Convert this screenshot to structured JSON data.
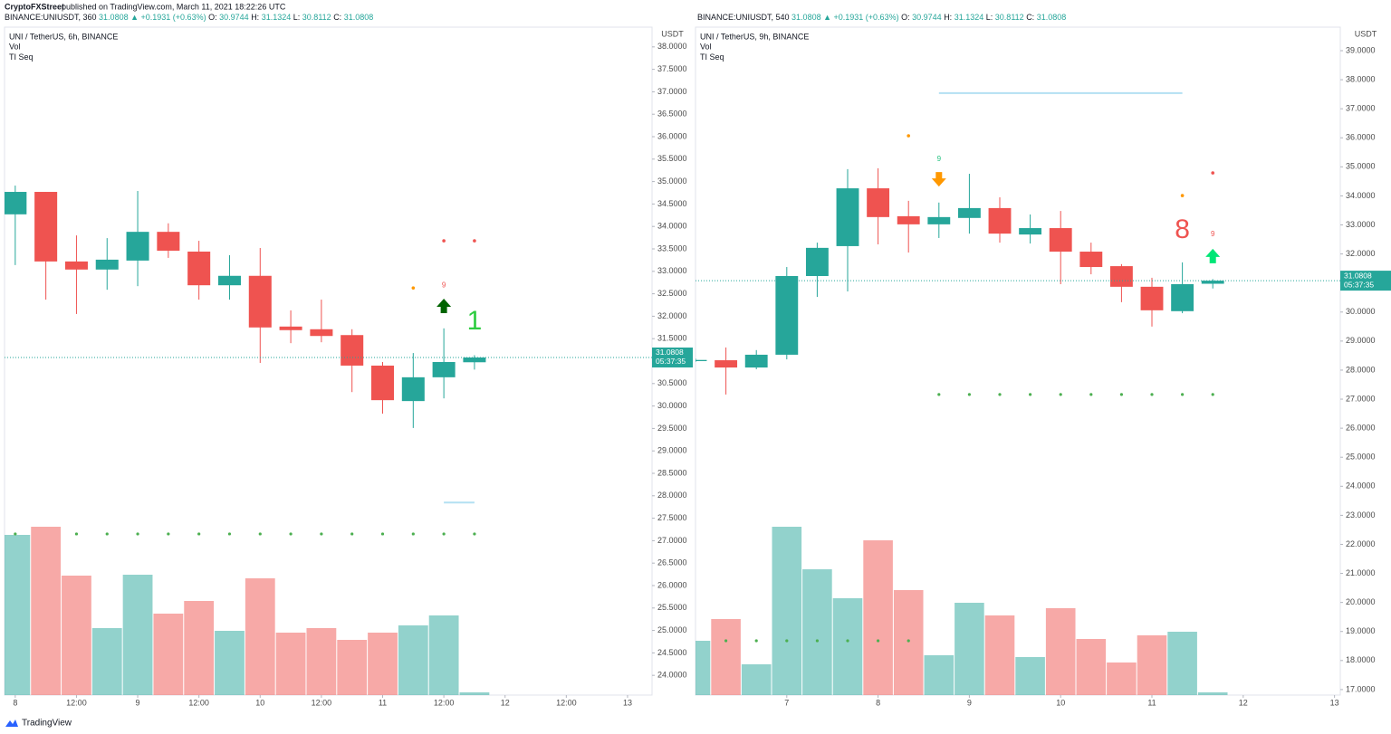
{
  "header": {
    "author": "CryptoFXStreet",
    "published": "published on TradingView.com, March 11, 2021 18:22:26 UTC"
  },
  "footer": "TradingView",
  "chart_data": [
    {
      "type": "candlestick",
      "symbol": "BINANCE:UNIUSDT, 360",
      "change": "▲ +0.1931 (+0.63%)",
      "ohlc_keys": [
        "O:",
        "H:",
        "L:",
        "C:"
      ],
      "title": "UNI / TetherUS, 6h, BINANCE",
      "legend": [
        "Vol",
        "TI Seq"
      ],
      "currency": "USDT",
      "countdown": "05:37:35",
      "colors": {
        "up": "#26a69a",
        "down": "#ef5350"
      },
      "open": [
        34.27,
        34.77,
        33.22,
        33.04,
        33.24,
        33.88,
        33.44,
        32.69,
        32.9,
        31.77,
        31.71,
        31.58,
        30.9,
        30.11,
        30.64,
        30.9744
      ],
      "high": [
        34.91,
        34.77,
        33.8,
        33.74,
        34.79,
        34.07,
        33.68,
        33.36,
        33.52,
        32.13,
        32.37,
        31.71,
        30.98,
        31.18,
        31.73,
        31.1324
      ],
      "low": [
        33.14,
        32.37,
        32.05,
        32.59,
        32.67,
        33.3,
        32.37,
        32.37,
        30.96,
        31.4,
        31.42,
        30.31,
        29.83,
        29.51,
        30.17,
        30.8112
      ],
      "close": [
        34.77,
        33.22,
        33.04,
        33.26,
        33.88,
        33.46,
        32.69,
        32.9,
        31.75,
        31.69,
        31.56,
        30.9,
        30.13,
        30.64,
        30.98,
        31.0808
      ],
      "volume": [
        177,
        186,
        132,
        74,
        133,
        90,
        104,
        71,
        129,
        69,
        74,
        61,
        69,
        77,
        88,
        3
      ],
      "vlim": [
        0,
        738
      ],
      "xlim": [
        -0.35,
        20.8
      ],
      "xticks": [
        {
          "value": 0,
          "label": "8"
        },
        {
          "value": 2,
          "label": "12:00"
        },
        {
          "value": 4,
          "label": "9"
        },
        {
          "value": 6,
          "label": "12:00"
        },
        {
          "value": 8,
          "label": "10"
        },
        {
          "value": 10,
          "label": "12:00"
        },
        {
          "value": 12,
          "label": "11"
        },
        {
          "value": 14,
          "label": "12:00"
        },
        {
          "value": 16,
          "label": "12"
        },
        {
          "value": 18,
          "label": "12:00"
        },
        {
          "value": 20,
          "label": "13"
        }
      ],
      "ylim": [
        23.56,
        38.44
      ],
      "yticks": [
        {
          "value": 24,
          "label": "24.0000"
        },
        {
          "value": 24.5,
          "label": "24.5000"
        },
        {
          "value": 25,
          "label": "25.0000"
        },
        {
          "value": 25.5,
          "label": "25.5000"
        },
        {
          "value": 26,
          "label": "26.0000"
        },
        {
          "value": 26.5,
          "label": "26.5000"
        },
        {
          "value": 27,
          "label": "27.0000"
        },
        {
          "value": 27.5,
          "label": "27.5000"
        },
        {
          "value": 28,
          "label": "28.0000"
        },
        {
          "value": 28.5,
          "label": "28.5000"
        },
        {
          "value": 29,
          "label": "29.0000"
        },
        {
          "value": 29.5,
          "label": "29.5000"
        },
        {
          "value": 30,
          "label": "30.0000"
        },
        {
          "value": 30.5,
          "label": "30.5000"
        },
        {
          "value": 31,
          "label": "31.0000"
        },
        {
          "value": 31.5,
          "label": "31.5000"
        },
        {
          "value": 32,
          "label": "32.0000"
        },
        {
          "value": 32.5,
          "label": "32.5000"
        },
        {
          "value": 33,
          "label": "33.0000"
        },
        {
          "value": 33.5,
          "label": "33.5000"
        },
        {
          "value": 34,
          "label": "34.0000"
        },
        {
          "value": 34.5,
          "label": "34.5000"
        },
        {
          "value": 35,
          "label": "35.0000"
        },
        {
          "value": 35.5,
          "label": "35.5000"
        },
        {
          "value": 36,
          "label": "36.0000"
        },
        {
          "value": 36.5,
          "label": "36.5000"
        },
        {
          "value": 37,
          "label": "37.0000"
        },
        {
          "value": 37.5,
          "label": "37.5000"
        },
        {
          "value": 38,
          "label": "38.0000"
        }
      ],
      "markers": [
        {
          "shape": "dot",
          "color": "#ff9800",
          "index": 13,
          "price": 32.63
        },
        {
          "shape": "text",
          "text": "9",
          "color": "#ef5350",
          "index": 14,
          "price": 32.69
        },
        {
          "shape": "arrow-up",
          "color": "#006400",
          "index": 14,
          "price": 32.23
        },
        {
          "shape": "big",
          "text": "1",
          "color": "#2ecc40",
          "index": 15,
          "price": 31.87
        },
        {
          "shape": "dot",
          "color": "#ef5350",
          "index": 14,
          "price": 33.68
        },
        {
          "shape": "dot",
          "color": "#ef5350",
          "index": 15,
          "price": 33.68
        }
      ],
      "levels": [
        {
          "price": 27.85,
          "from": 14,
          "to": 15,
          "color": "#b3e0f2"
        }
      ],
      "dots": [
        {
          "price": 27.15,
          "color": "#4caf50",
          "indices": [
            0,
            2,
            3,
            4,
            5,
            6,
            7,
            8,
            9,
            10,
            11,
            12,
            13,
            14,
            15
          ]
        }
      ]
    },
    {
      "type": "candlestick",
      "symbol": "BINANCE:UNIUSDT, 540",
      "change": "▲ +0.1931 (+0.63%)",
      "ohlc_keys": [
        "O:",
        "H:",
        "L:",
        "C:"
      ],
      "title": "UNI / TetherUS, 9h, BINANCE",
      "legend": [
        "Vol",
        "TI Seq"
      ],
      "currency": "USDT",
      "countdown": "05:37:35",
      "colors": {
        "up": "#26a69a",
        "down": "#ef5350"
      },
      "open": [
        28.31,
        28.34,
        28.09,
        28.53,
        31.24,
        32.27,
        34.26,
        33.3,
        33.02,
        33.24,
        33.58,
        32.67,
        32.89,
        32.08,
        31.58,
        30.87,
        30.03,
        30.9744
      ],
      "high": [
        28.4,
        28.78,
        28.69,
        31.55,
        32.39,
        34.92,
        34.95,
        33.83,
        33.77,
        34.76,
        33.95,
        33.36,
        33.48,
        32.39,
        31.65,
        31.18,
        31.71,
        31.1324
      ],
      "low": [
        28.28,
        27.16,
        28.03,
        28.37,
        30.52,
        30.71,
        32.33,
        32.05,
        32.55,
        32.7,
        32.39,
        32.36,
        30.96,
        31.3,
        30.34,
        29.5,
        29.96,
        30.8112
      ],
      "close": [
        28.35,
        28.09,
        28.53,
        31.24,
        32.21,
        34.26,
        33.27,
        33.02,
        33.27,
        33.58,
        32.7,
        32.89,
        32.08,
        31.55,
        30.87,
        30.06,
        30.96,
        31.0808
      ],
      "volume": [
        60,
        84,
        34,
        186,
        139,
        107,
        171,
        116,
        44,
        102,
        88,
        42,
        96,
        62,
        36,
        66,
        70,
        3
      ],
      "vlim": [
        0,
        738
      ],
      "xlim": [
        0,
        21.19
      ],
      "xticks": [
        {
          "value": 3,
          "label": "7"
        },
        {
          "value": 6,
          "label": "8"
        },
        {
          "value": 9,
          "label": "9"
        },
        {
          "value": 12,
          "label": "10"
        },
        {
          "value": 15,
          "label": "11"
        },
        {
          "value": 18,
          "label": "12"
        },
        {
          "value": 21,
          "label": "13"
        }
      ],
      "ylim": [
        16.81,
        39.81
      ],
      "yticks": [
        {
          "value": 17,
          "label": "17.0000"
        },
        {
          "value": 18,
          "label": "18.0000"
        },
        {
          "value": 19,
          "label": "19.0000"
        },
        {
          "value": 20,
          "label": "20.0000"
        },
        {
          "value": 21,
          "label": "21.0000"
        },
        {
          "value": 22,
          "label": "22.0000"
        },
        {
          "value": 23,
          "label": "23.0000"
        },
        {
          "value": 24,
          "label": "24.0000"
        },
        {
          "value": 25,
          "label": "25.0000"
        },
        {
          "value": 26,
          "label": "26.0000"
        },
        {
          "value": 27,
          "label": "27.0000"
        },
        {
          "value": 28,
          "label": "28.0000"
        },
        {
          "value": 29,
          "label": "29.0000"
        },
        {
          "value": 30,
          "label": "30.0000"
        },
        {
          "value": 31,
          "label": "31.0000"
        },
        {
          "value": 32,
          "label": "32.0000"
        },
        {
          "value": 33,
          "label": "33.0000"
        },
        {
          "value": 34,
          "label": "34.0000"
        },
        {
          "value": 35,
          "label": "35.0000"
        },
        {
          "value": 36,
          "label": "36.0000"
        },
        {
          "value": 37,
          "label": "37.0000"
        },
        {
          "value": 38,
          "label": "38.0000"
        },
        {
          "value": 39,
          "label": "39.0000"
        }
      ],
      "markers": [
        {
          "shape": "dot",
          "color": "#ff9800",
          "index": 7,
          "price": 36.07
        },
        {
          "shape": "text",
          "text": "9",
          "color": "#26c281",
          "index": 8,
          "price": 35.26
        },
        {
          "shape": "arrow-down",
          "color": "#ff9800",
          "index": 8,
          "price": 34.57
        },
        {
          "shape": "dot",
          "color": "#ef5350",
          "index": 17,
          "price": 34.79
        },
        {
          "shape": "dot",
          "color": "#ff9800",
          "index": 16,
          "price": 34.01
        },
        {
          "shape": "big",
          "text": "8",
          "color": "#ef5350",
          "index": 16,
          "price": 32.8
        },
        {
          "shape": "text",
          "text": "9",
          "color": "#ef5350",
          "index": 17,
          "price": 32.67
        },
        {
          "shape": "arrow-up",
          "color": "#00e676",
          "index": 17,
          "price": 31.93
        }
      ],
      "levels": [
        {
          "price": 37.54,
          "from": 8,
          "to": 16,
          "color": "#b3e0f2"
        }
      ],
      "dots": [
        {
          "price": 27.16,
          "color": "#4caf50",
          "indices": [
            8,
            9,
            10,
            11,
            12,
            13,
            14,
            15,
            16,
            17
          ]
        },
        {
          "price": 18.68,
          "color": "#4caf50",
          "indices": [
            1,
            2,
            3,
            4,
            5,
            6,
            7
          ]
        }
      ]
    }
  ]
}
